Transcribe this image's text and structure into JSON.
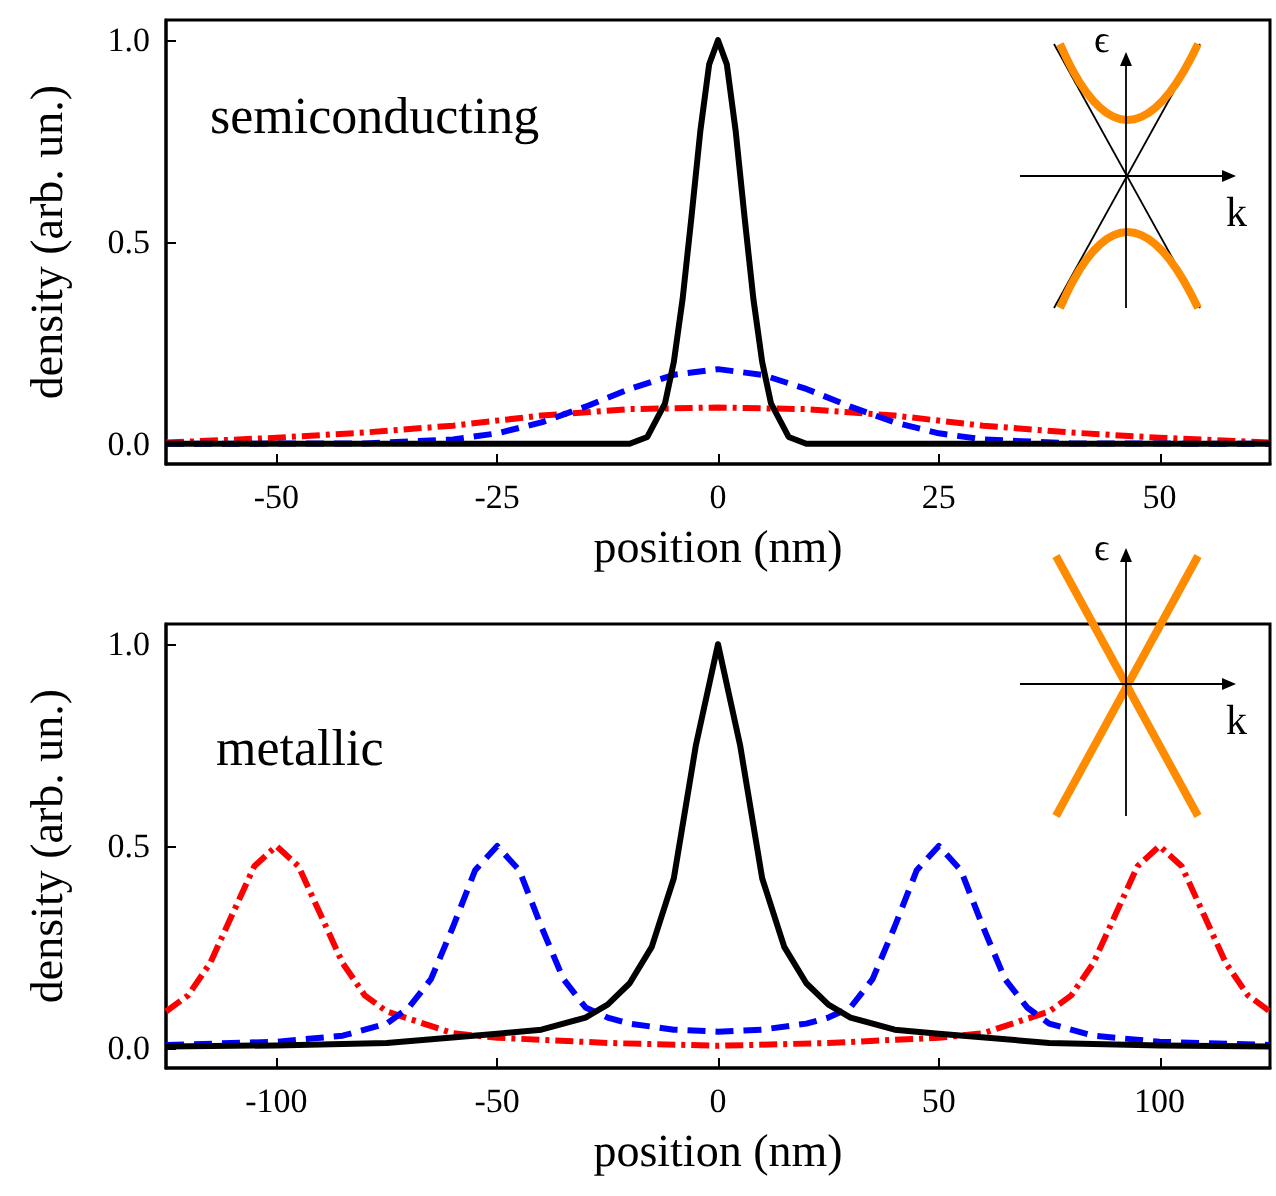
{
  "chart_data": [
    {
      "type": "line",
      "xlabel": "position (nm)",
      "ylabel": "density (arb. un.)",
      "annotations": [
        "semiconducting",
        "ϵ",
        "k"
      ],
      "xlim": [
        -62.5,
        62.5
      ],
      "xticks": [
        -50,
        -25,
        0,
        25,
        50
      ],
      "ylim": [
        -0.05,
        1.05
      ],
      "yticks": [
        {
          "value": 0,
          "label": "0.0"
        },
        {
          "value": 0.5,
          "label": "0.5"
        },
        {
          "value": 1,
          "label": "1.0"
        }
      ],
      "grid": false,
      "marker": "none",
      "series": [
        {
          "color": "#ff0000",
          "line_style": "dashdot",
          "x": [
            -62.5,
            -50,
            -40,
            -30,
            -20,
            -10,
            0,
            10,
            20,
            30,
            40,
            50,
            62.5
          ],
          "values": [
            0.003,
            0.015,
            0.028,
            0.045,
            0.07,
            0.086,
            0.09,
            0.086,
            0.07,
            0.045,
            0.028,
            0.015,
            0.003
          ]
        },
        {
          "color": "#0000ff",
          "line_style": "dashed",
          "x": [
            -62.5,
            -40,
            -30,
            -25,
            -20,
            -15,
            -10,
            -5,
            0,
            5,
            10,
            15,
            20,
            25,
            30,
            40,
            62.5
          ],
          "values": [
            0,
            0.001,
            0.011,
            0.026,
            0.053,
            0.092,
            0.136,
            0.171,
            0.185,
            0.171,
            0.136,
            0.092,
            0.053,
            0.026,
            0.011,
            0.001,
            0
          ]
        },
        {
          "color": "#000000",
          "line_style": "solid",
          "x": [
            -62.5,
            -10,
            -8,
            -6,
            -5,
            -4,
            -3,
            -2,
            -1,
            0,
            1,
            2,
            3,
            4,
            5,
            6,
            8,
            10,
            62.5
          ],
          "values": [
            0,
            0,
            0.017,
            0.1,
            0.203,
            0.36,
            0.563,
            0.775,
            0.94,
            1,
            0.94,
            0.775,
            0.563,
            0.36,
            0.203,
            0.1,
            0.017,
            0,
            0
          ]
        }
      ]
    },
    {
      "type": "line",
      "xlabel": "position (nm)",
      "ylabel": "density (arb. un.)",
      "annotations": [
        "metallic",
        "ϵ",
        "k"
      ],
      "xlim": [
        -125,
        125
      ],
      "xticks": [
        -100,
        -50,
        0,
        50,
        100
      ],
      "ylim": [
        -0.05,
        1.05
      ],
      "yticks": [
        {
          "value": 0,
          "label": "0.0"
        },
        {
          "value": 0.5,
          "label": "0.5"
        },
        {
          "value": 1,
          "label": "1.0"
        }
      ],
      "grid": false,
      "marker": "none",
      "series": [
        {
          "color": "#ff0000",
          "line_style": "dashdot",
          "x": [
            -125,
            -120,
            -115,
            -110,
            -105,
            -100,
            -95,
            -90,
            -85,
            -80,
            -75,
            -60,
            -50,
            -25,
            0,
            25,
            50,
            60,
            75,
            80,
            85,
            90,
            95,
            100,
            105,
            110,
            115,
            120,
            125
          ],
          "values": [
            0.09,
            0.13,
            0.21,
            0.33,
            0.45,
            0.5,
            0.45,
            0.33,
            0.21,
            0.13,
            0.09,
            0.036,
            0.025,
            0.012,
            0.005,
            0.012,
            0.025,
            0.036,
            0.09,
            0.13,
            0.21,
            0.33,
            0.45,
            0.5,
            0.45,
            0.33,
            0.21,
            0.13,
            0.09
          ]
        },
        {
          "color": "#0000ff",
          "line_style": "dashed",
          "x": [
            -125,
            -100,
            -85,
            -75,
            -70,
            -65,
            -60,
            -55,
            -50,
            -45,
            -40,
            -35,
            -30,
            -25,
            -20,
            -10,
            0,
            10,
            20,
            25,
            30,
            35,
            40,
            45,
            50,
            55,
            60,
            65,
            70,
            75,
            85,
            100,
            125
          ],
          "values": [
            0.007,
            0.015,
            0.03,
            0.06,
            0.1,
            0.17,
            0.3,
            0.44,
            0.5,
            0.44,
            0.3,
            0.17,
            0.1,
            0.075,
            0.06,
            0.045,
            0.04,
            0.045,
            0.06,
            0.075,
            0.1,
            0.17,
            0.3,
            0.44,
            0.5,
            0.44,
            0.3,
            0.17,
            0.1,
            0.06,
            0.03,
            0.015,
            0.007
          ]
        },
        {
          "color": "#000000",
          "line_style": "solid",
          "x": [
            -125,
            -100,
            -75,
            -50,
            -40,
            -30,
            -25,
            -20,
            -15,
            -10,
            -5,
            0,
            5,
            10,
            15,
            20,
            25,
            30,
            40,
            50,
            75,
            100,
            125
          ],
          "values": [
            0.003,
            0.006,
            0.012,
            0.035,
            0.045,
            0.075,
            0.107,
            0.16,
            0.25,
            0.42,
            0.75,
            1,
            0.75,
            0.42,
            0.25,
            0.16,
            0.107,
            0.075,
            0.045,
            0.035,
            0.012,
            0.006,
            0.003
          ]
        }
      ]
    }
  ]
}
